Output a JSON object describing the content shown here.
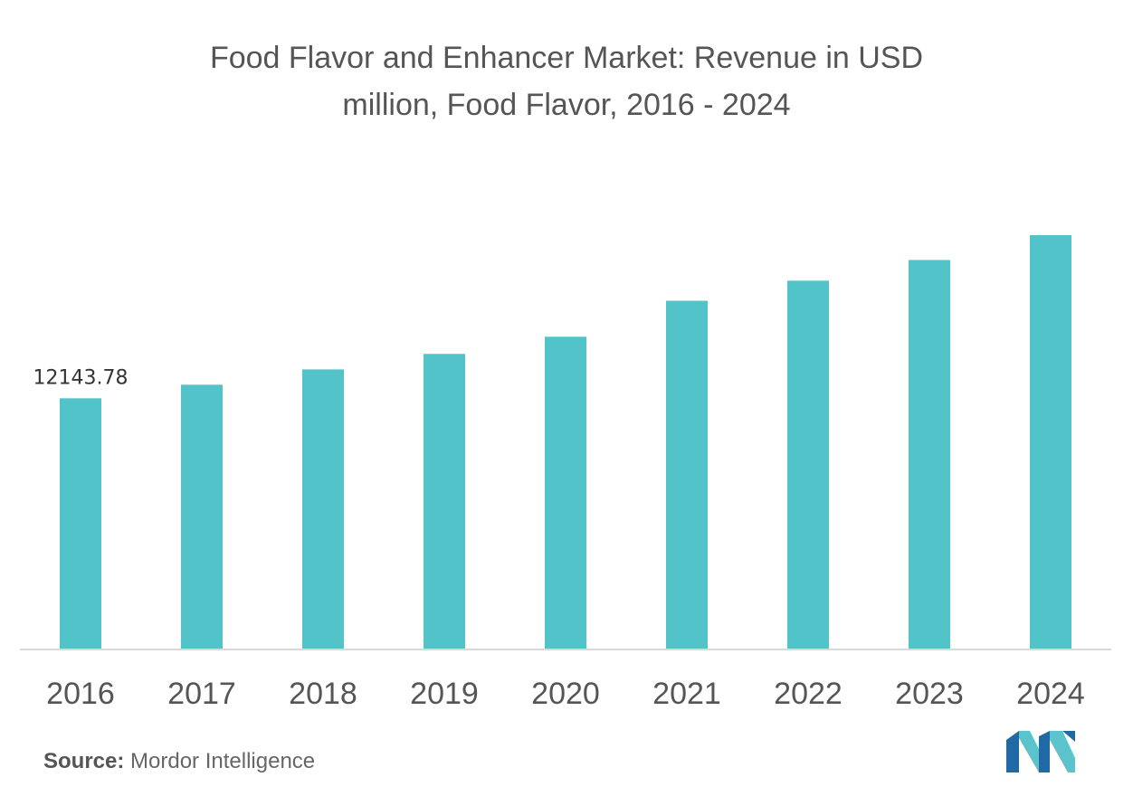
{
  "chart_data": {
    "type": "bar",
    "title_line1": "Food Flavor and Enhancer Market: Revenue in USD",
    "title_line2": "million, Food Flavor, 2016 - 2024",
    "xlabel": "",
    "ylabel": "",
    "categories": [
      "2016",
      "2017",
      "2018",
      "2019",
      "2020",
      "2021",
      "2022",
      "2023",
      "2024"
    ],
    "values": [
      12143.78,
      12800,
      13540,
      14290,
      15120,
      16860,
      17830,
      18830,
      20030
    ],
    "data_labels": [
      "12143.78",
      "",
      "",
      "",
      "",
      "",
      "",
      "",
      ""
    ],
    "ylim": [
      0,
      20030
    ],
    "grid": false,
    "legend": "none",
    "bar_color": "#52c3c9",
    "axis_color": "#d9d9d9"
  },
  "source": {
    "label": "Source:",
    "text": "Mordor Intelligence"
  },
  "logo": {
    "icon": "mordor-intelligence-logo-icon",
    "color_dark": "#1f6aa5",
    "color_light": "#5bc3cc"
  }
}
